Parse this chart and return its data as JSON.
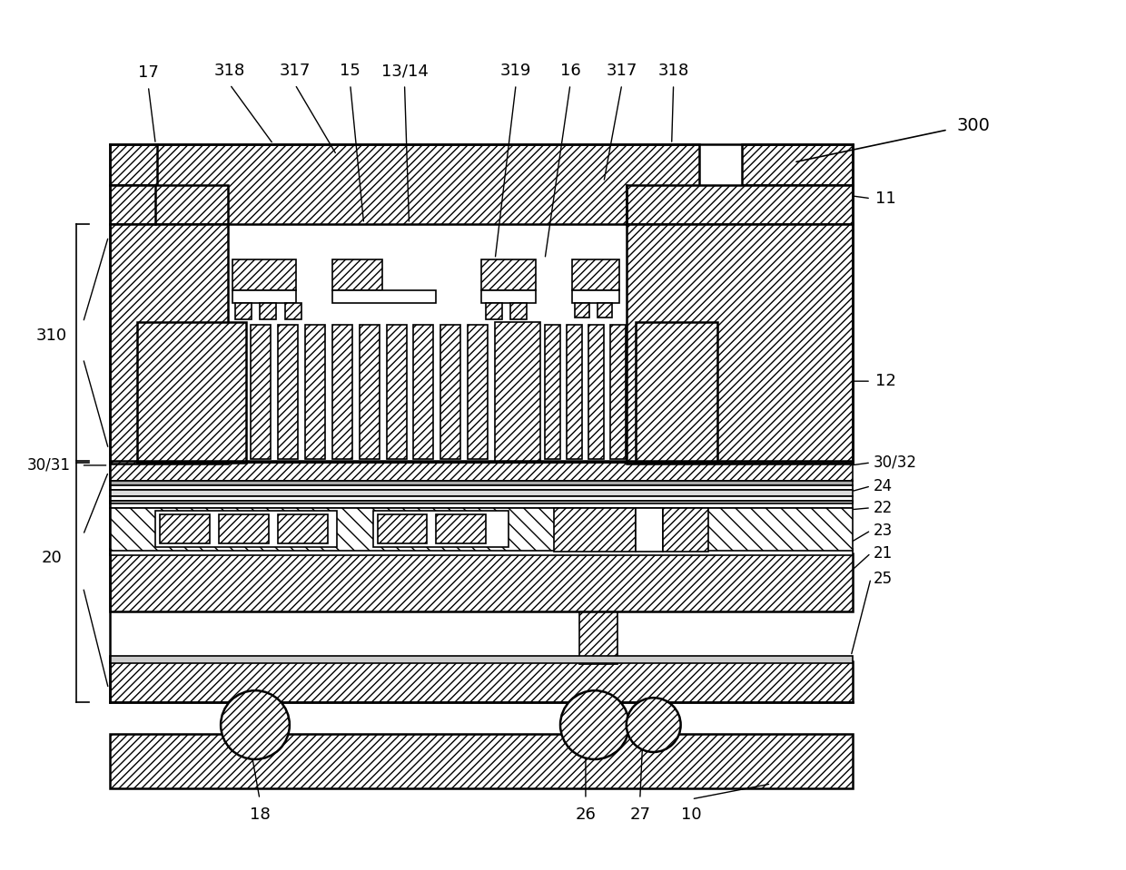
{
  "fig_width": 12.4,
  "fig_height": 9.59,
  "dpi": 100,
  "bg_color": "#ffffff",
  "line_color": "#000000"
}
